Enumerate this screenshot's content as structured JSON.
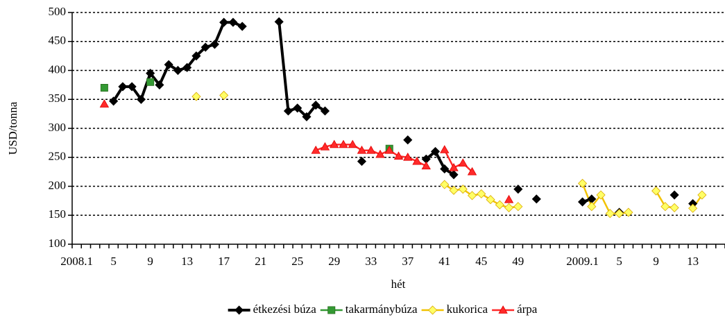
{
  "chart_data": {
    "type": "line",
    "xlabel": "hét",
    "ylabel": "USD/tonna",
    "categories": [
      "2008.1",
      null,
      null,
      null,
      "5",
      null,
      null,
      null,
      "9",
      null,
      null,
      null,
      "13",
      null,
      null,
      null,
      "17",
      null,
      null,
      null,
      "21",
      null,
      null,
      null,
      "25",
      null,
      null,
      null,
      "29",
      null,
      null,
      null,
      "33",
      null,
      null,
      null,
      "37",
      null,
      null,
      null,
      "41",
      null,
      null,
      null,
      "45",
      null,
      null,
      null,
      "49",
      null,
      null,
      null,
      null,
      null,
      null,
      "2009.1",
      null,
      null,
      null,
      "5",
      null,
      null,
      null,
      "9",
      null,
      null,
      null,
      "13",
      null,
      null,
      null
    ],
    "series": [
      {
        "name": "étkezési búza",
        "color": "#000000",
        "marker": "diamond",
        "values": [
          null,
          null,
          null,
          null,
          347,
          372,
          372,
          350,
          395,
          375,
          410,
          400,
          405,
          425,
          440,
          445,
          483,
          483,
          476,
          null,
          null,
          null,
          484,
          330,
          335,
          320,
          340,
          330,
          null,
          null,
          null,
          243,
          null,
          null,
          null,
          null,
          280,
          null,
          247,
          260,
          230,
          220,
          null,
          null,
          null,
          null,
          null,
          null,
          195,
          null,
          178,
          null,
          null,
          null,
          null,
          173,
          178,
          null,
          null,
          155,
          null,
          null,
          null,
          null,
          null,
          185,
          null,
          170,
          null,
          null,
          null
        ]
      },
      {
        "name": "takarmánybúza",
        "color": "#339933",
        "marker": "square",
        "values": [
          null,
          null,
          null,
          370,
          null,
          null,
          null,
          null,
          380,
          null,
          null,
          null,
          null,
          null,
          null,
          null,
          null,
          null,
          null,
          null,
          null,
          null,
          null,
          null,
          null,
          null,
          null,
          null,
          null,
          null,
          null,
          null,
          null,
          null,
          265,
          null,
          null,
          null,
          null,
          null,
          null,
          null,
          null,
          null,
          null,
          null,
          null,
          null,
          null,
          null,
          null,
          null,
          null,
          null,
          null,
          null,
          null,
          null,
          null,
          null,
          null,
          null,
          null,
          null,
          null,
          null,
          null,
          null,
          null,
          null,
          null
        ]
      },
      {
        "name": "kukorica",
        "color": "#f2c200",
        "marker": "diamond",
        "values": [
          null,
          null,
          null,
          null,
          null,
          null,
          null,
          null,
          null,
          null,
          null,
          null,
          null,
          355,
          null,
          null,
          357,
          null,
          null,
          null,
          null,
          null,
          null,
          null,
          null,
          null,
          null,
          null,
          null,
          null,
          null,
          null,
          null,
          null,
          null,
          null,
          null,
          null,
          null,
          null,
          203,
          193,
          195,
          184,
          187,
          177,
          168,
          163,
          165,
          null,
          null,
          null,
          null,
          null,
          null,
          205,
          165,
          185,
          153,
          153,
          155,
          null,
          null,
          192,
          165,
          163,
          null,
          162,
          185,
          null,
          null
        ]
      },
      {
        "name": "árpa",
        "color": "#ff2a2a",
        "marker": "triangle",
        "values": [
          null,
          null,
          null,
          342,
          null,
          null,
          null,
          null,
          null,
          null,
          null,
          null,
          null,
          null,
          null,
          null,
          null,
          null,
          null,
          null,
          null,
          null,
          null,
          null,
          null,
          null,
          262,
          268,
          272,
          272,
          272,
          262,
          262,
          255,
          262,
          252,
          250,
          243,
          235,
          null,
          263,
          232,
          240,
          225,
          null,
          null,
          null,
          177,
          null,
          null,
          null,
          null,
          null,
          null,
          null,
          null,
          null,
          null,
          null,
          null,
          null,
          null,
          null,
          null,
          null,
          null,
          null,
          null,
          null,
          null,
          null
        ]
      }
    ],
    "ylim": [
      100,
      500
    ],
    "yticks": [
      100,
      150,
      200,
      250,
      300,
      350,
      400,
      450,
      500
    ],
    "grid": true,
    "legend": "bottom"
  }
}
